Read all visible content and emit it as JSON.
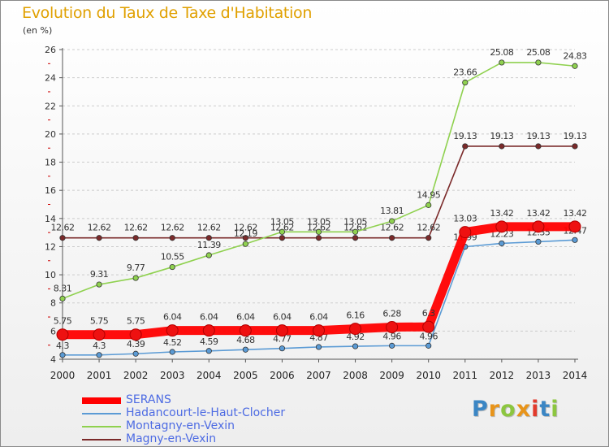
{
  "header": {
    "title": "Evolution du Taux de Taxe d'Habitation",
    "unit": "(en %)"
  },
  "brand": {
    "logo_text": "Proxiti"
  },
  "colors": {
    "serans": "#ff0000",
    "hadancourt": "#5b9bd5",
    "montagny": "#8fd14f",
    "magny": "#7b2a2a",
    "axis": "#555555",
    "grid": "#cccccc",
    "tick_accent": "#cc0000"
  },
  "chart_data": {
    "type": "line",
    "title": "Evolution du Taux de Taxe d'Habitation",
    "ylabel": "(en %)",
    "xlabel": "",
    "x": [
      "2000",
      "2001",
      "2002",
      "2003",
      "2004",
      "2005",
      "2006",
      "2007",
      "2008",
      "2009",
      "2010",
      "2011",
      "2012",
      "2013",
      "2014"
    ],
    "ylim": [
      4,
      26
    ],
    "yticks": [
      4,
      6,
      8,
      10,
      12,
      14,
      16,
      18,
      20,
      22,
      24,
      26
    ],
    "grid": "horizontal-dashed",
    "legend_position": "bottom-left",
    "series": [
      {
        "name": "SERANS",
        "key": "serans",
        "values": [
          5.75,
          5.75,
          5.75,
          6.04,
          6.04,
          6.04,
          6.04,
          6.04,
          6.16,
          6.28,
          6.3,
          13.03,
          13.42,
          13.42,
          13.42
        ],
        "labels": [
          "5.75",
          "5.75",
          "5.75",
          "6.04",
          "6.04",
          "6.04",
          "6.04",
          "6.04",
          "6.16",
          "6.28",
          "6.3",
          "13.03",
          "13.42",
          "13.42",
          "13.42"
        ]
      },
      {
        "name": "Hadancourt-le-Haut-Clocher",
        "key": "hadancourt",
        "values": [
          4.3,
          4.3,
          4.39,
          4.52,
          4.59,
          4.68,
          4.77,
          4.87,
          4.92,
          4.96,
          4.96,
          11.99,
          12.23,
          12.35,
          12.47
        ],
        "labels": [
          "4.3",
          "4.3",
          "4.39",
          "4.52",
          "4.59",
          "4.68",
          "4.77",
          "4.87",
          "4.92",
          "4.96",
          "4.96",
          "11.99",
          "12.23",
          "12.35",
          "12.47"
        ]
      },
      {
        "name": "Montagny-en-Vexin",
        "key": "montagny",
        "values": [
          8.31,
          9.31,
          9.77,
          10.55,
          11.39,
          12.19,
          13.05,
          13.05,
          13.05,
          13.81,
          14.95,
          23.66,
          25.08,
          25.08,
          24.83
        ],
        "labels": [
          "8.31",
          "9.31",
          "9.77",
          "10.55",
          "11.39",
          "12.19",
          "13.05",
          "13.05",
          "13.05",
          "13.81",
          "14.95",
          "23.66",
          "25.08",
          "25.08",
          "24.83"
        ]
      },
      {
        "name": "Magny-en-Vexin",
        "key": "magny",
        "values": [
          12.62,
          12.62,
          12.62,
          12.62,
          12.62,
          12.62,
          12.62,
          12.62,
          12.62,
          12.62,
          12.62,
          19.13,
          19.13,
          19.13,
          19.13
        ],
        "labels": [
          "12.62",
          "12.62",
          "12.62",
          "12.62",
          "12.62",
          "12.62",
          "12.62",
          "12.62",
          "12.62",
          "12.62",
          "12.62",
          "19.13",
          "19.13",
          "19.13",
          "19.13"
        ]
      }
    ]
  }
}
